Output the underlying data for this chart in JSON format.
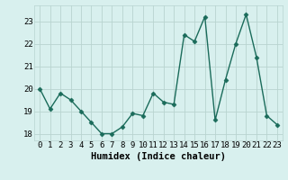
{
  "x": [
    0,
    1,
    2,
    3,
    4,
    5,
    6,
    7,
    8,
    9,
    10,
    11,
    12,
    13,
    14,
    15,
    16,
    17,
    18,
    19,
    20,
    21,
    22,
    23
  ],
  "y": [
    20.0,
    19.1,
    19.8,
    19.5,
    19.0,
    18.5,
    18.0,
    18.0,
    18.3,
    18.9,
    18.8,
    19.8,
    19.4,
    19.3,
    22.4,
    22.1,
    23.2,
    18.6,
    20.4,
    22.0,
    23.3,
    21.4,
    18.8,
    18.4
  ],
  "line_color": "#1a6b5a",
  "marker": "D",
  "marker_size": 2.5,
  "bg_color": "#d8f0ee",
  "grid_color": "#b8d4d0",
  "xlabel": "Humidex (Indice chaleur)",
  "xlim": [
    -0.5,
    23.5
  ],
  "ylim": [
    17.7,
    23.7
  ],
  "yticks": [
    18,
    19,
    20,
    21,
    22,
    23
  ],
  "xticks": [
    0,
    1,
    2,
    3,
    4,
    5,
    6,
    7,
    8,
    9,
    10,
    11,
    12,
    13,
    14,
    15,
    16,
    17,
    18,
    19,
    20,
    21,
    22,
    23
  ],
  "xlabel_fontsize": 7.5,
  "tick_fontsize": 6.5,
  "line_width": 1.0
}
